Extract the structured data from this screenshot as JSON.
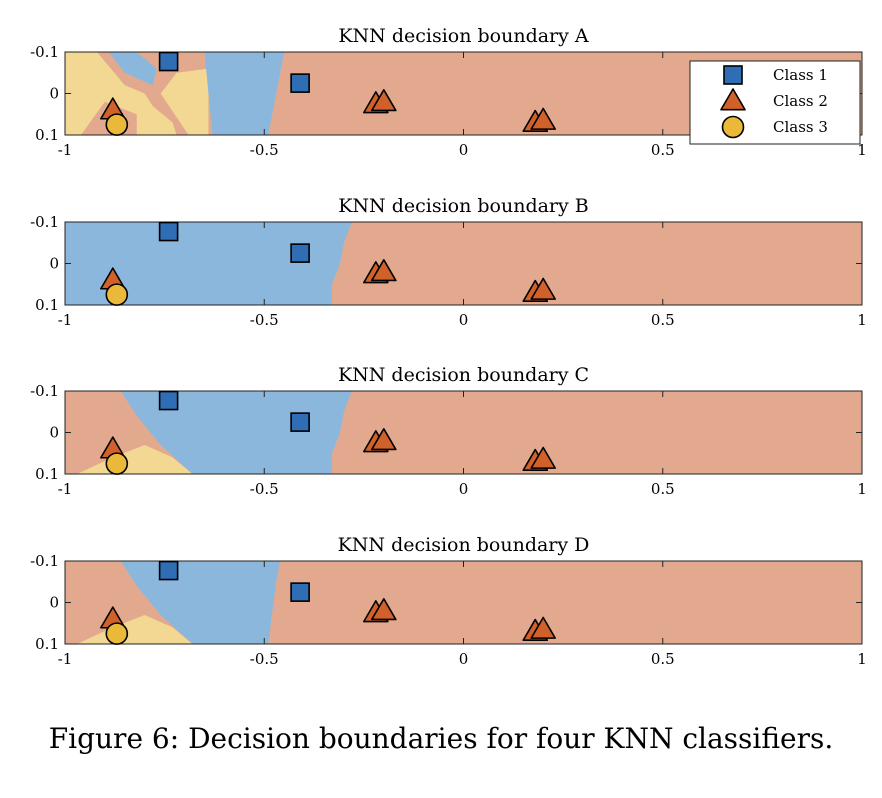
{
  "caption": "Figure 6: Decision boundaries for four KNN classifiers.",
  "colors": {
    "class1": "#2f6db5",
    "class2": "#d0612a",
    "class3": "#eab93a",
    "region1": "#8cb7dd",
    "region2": "#e2a98f",
    "region3": "#f2d893"
  },
  "legend": {
    "placement": "top-right",
    "entries": [
      {
        "label": "Class 1",
        "marker": "square"
      },
      {
        "label": "Class 2",
        "marker": "triangle"
      },
      {
        "label": "Class 3",
        "marker": "circle"
      }
    ]
  },
  "points": [
    {
      "class": 1,
      "x": -0.74,
      "y": -0.077
    },
    {
      "class": 1,
      "x": -0.41,
      "y": -0.025
    },
    {
      "class": 2,
      "x": -0.88,
      "y": 0.04
    },
    {
      "class": 2,
      "x": -0.22,
      "y": 0.025
    },
    {
      "class": 2,
      "x": -0.2,
      "y": 0.02
    },
    {
      "class": 2,
      "x": 0.18,
      "y": 0.07
    },
    {
      "class": 2,
      "x": 0.2,
      "y": 0.065
    },
    {
      "class": 3,
      "x": -0.87,
      "y": 0.075
    }
  ],
  "chart_data": [
    {
      "type": "scatter",
      "title": "KNN decision boundary A",
      "xlim": [
        -1,
        1
      ],
      "ylim": [
        -0.1,
        0.1
      ],
      "y_reversed": true,
      "xticks": [
        "-1",
        "-0.5",
        "0",
        "0.5",
        "1"
      ],
      "yticks": [
        "-0.1",
        "0",
        "0.1"
      ],
      "show_legend": true,
      "regions": [
        {
          "class": 2,
          "polygon": [
            [
              -1,
              -0.1
            ],
            [
              1,
              -0.1
            ],
            [
              1,
              0.1
            ],
            [
              -1,
              0.1
            ]
          ]
        },
        {
          "class": 3,
          "polygon": [
            [
              -1,
              -0.1
            ],
            [
              -0.92,
              -0.1
            ],
            [
              -0.85,
              -0.02
            ],
            [
              -0.8,
              0.0
            ],
            [
              -0.78,
              0.03
            ],
            [
              -0.73,
              0.07
            ],
            [
              -0.72,
              0.1
            ],
            [
              -1,
              0.1
            ]
          ]
        },
        {
          "class": 2,
          "polygon": [
            [
              -0.96,
              0.1
            ],
            [
              -0.9,
              0.02
            ],
            [
              -0.82,
              0.05
            ],
            [
              -0.82,
              0.1
            ]
          ]
        },
        {
          "class": 3,
          "polygon": [
            [
              -0.76,
              0.0
            ],
            [
              -0.72,
              -0.05
            ],
            [
              -0.64,
              -0.06
            ],
            [
              -0.64,
              0.1
            ],
            [
              -0.69,
              0.1
            ]
          ]
        },
        {
          "class": 1,
          "polygon": [
            [
              -0.89,
              -0.1
            ],
            [
              -0.82,
              -0.1
            ],
            [
              -0.77,
              -0.06
            ],
            [
              -0.78,
              -0.02
            ],
            [
              -0.85,
              -0.05
            ]
          ]
        },
        {
          "class": 1,
          "polygon": [
            [
              -0.65,
              -0.1
            ],
            [
              -0.45,
              -0.1
            ],
            [
              -0.46,
              -0.05
            ],
            [
              -0.49,
              0.1
            ],
            [
              -0.63,
              0.1
            ]
          ]
        }
      ]
    },
    {
      "type": "scatter",
      "title": "KNN decision boundary B",
      "xlim": [
        -1,
        1
      ],
      "ylim": [
        -0.1,
        0.1
      ],
      "y_reversed": true,
      "xticks": [
        "-1",
        "-0.5",
        "0",
        "0.5",
        "1"
      ],
      "yticks": [
        "-0.1",
        "0",
        "0.1"
      ],
      "show_legend": false,
      "regions": [
        {
          "class": 2,
          "polygon": [
            [
              -1,
              -0.1
            ],
            [
              1,
              -0.1
            ],
            [
              1,
              0.1
            ],
            [
              -1,
              0.1
            ]
          ]
        },
        {
          "class": 1,
          "polygon": [
            [
              -1,
              -0.1
            ],
            [
              -0.28,
              -0.1
            ],
            [
              -0.3,
              -0.05
            ],
            [
              -0.31,
              0.0
            ],
            [
              -0.33,
              0.05
            ],
            [
              -0.33,
              0.1
            ],
            [
              -1,
              0.1
            ]
          ]
        }
      ]
    },
    {
      "type": "scatter",
      "title": "KNN decision boundary C",
      "xlim": [
        -1,
        1
      ],
      "ylim": [
        -0.1,
        0.1
      ],
      "y_reversed": true,
      "xticks": [
        "-1",
        "-0.5",
        "0",
        "0.5",
        "1"
      ],
      "yticks": [
        "-0.1",
        "0",
        "0.1"
      ],
      "show_legend": false,
      "regions": [
        {
          "class": 2,
          "polygon": [
            [
              -1,
              -0.1
            ],
            [
              1,
              -0.1
            ],
            [
              1,
              0.1
            ],
            [
              -1,
              0.1
            ]
          ]
        },
        {
          "class": 1,
          "polygon": [
            [
              -0.86,
              -0.1
            ],
            [
              -0.28,
              -0.1
            ],
            [
              -0.3,
              -0.05
            ],
            [
              -0.31,
              0.0
            ],
            [
              -0.33,
              0.05
            ],
            [
              -0.33,
              0.1
            ],
            [
              -0.68,
              0.1
            ],
            [
              -0.76,
              0.03
            ],
            [
              -0.82,
              -0.04
            ]
          ]
        },
        {
          "class": 3,
          "polygon": [
            [
              -0.97,
              0.1
            ],
            [
              -0.88,
              0.06
            ],
            [
              -0.8,
              0.03
            ],
            [
              -0.73,
              0.06
            ],
            [
              -0.68,
              0.1
            ]
          ]
        }
      ]
    },
    {
      "type": "scatter",
      "title": "KNN decision boundary D",
      "xlim": [
        -1,
        1
      ],
      "ylim": [
        -0.1,
        0.1
      ],
      "y_reversed": true,
      "xticks": [
        "-1",
        "-0.5",
        "0",
        "0.5",
        "1"
      ],
      "yticks": [
        "-0.1",
        "0",
        "0.1"
      ],
      "show_legend": false,
      "regions": [
        {
          "class": 2,
          "polygon": [
            [
              -1,
              -0.1
            ],
            [
              1,
              -0.1
            ],
            [
              1,
              0.1
            ],
            [
              -1,
              0.1
            ]
          ]
        },
        {
          "class": 1,
          "polygon": [
            [
              -0.86,
              -0.1
            ],
            [
              -0.46,
              -0.1
            ],
            [
              -0.47,
              -0.05
            ],
            [
              -0.49,
              0.1
            ],
            [
              -0.68,
              0.1
            ],
            [
              -0.76,
              0.03
            ],
            [
              -0.82,
              -0.04
            ]
          ]
        },
        {
          "class": 3,
          "polygon": [
            [
              -0.97,
              0.1
            ],
            [
              -0.88,
              0.06
            ],
            [
              -0.8,
              0.03
            ],
            [
              -0.73,
              0.06
            ],
            [
              -0.68,
              0.1
            ]
          ]
        }
      ]
    }
  ]
}
